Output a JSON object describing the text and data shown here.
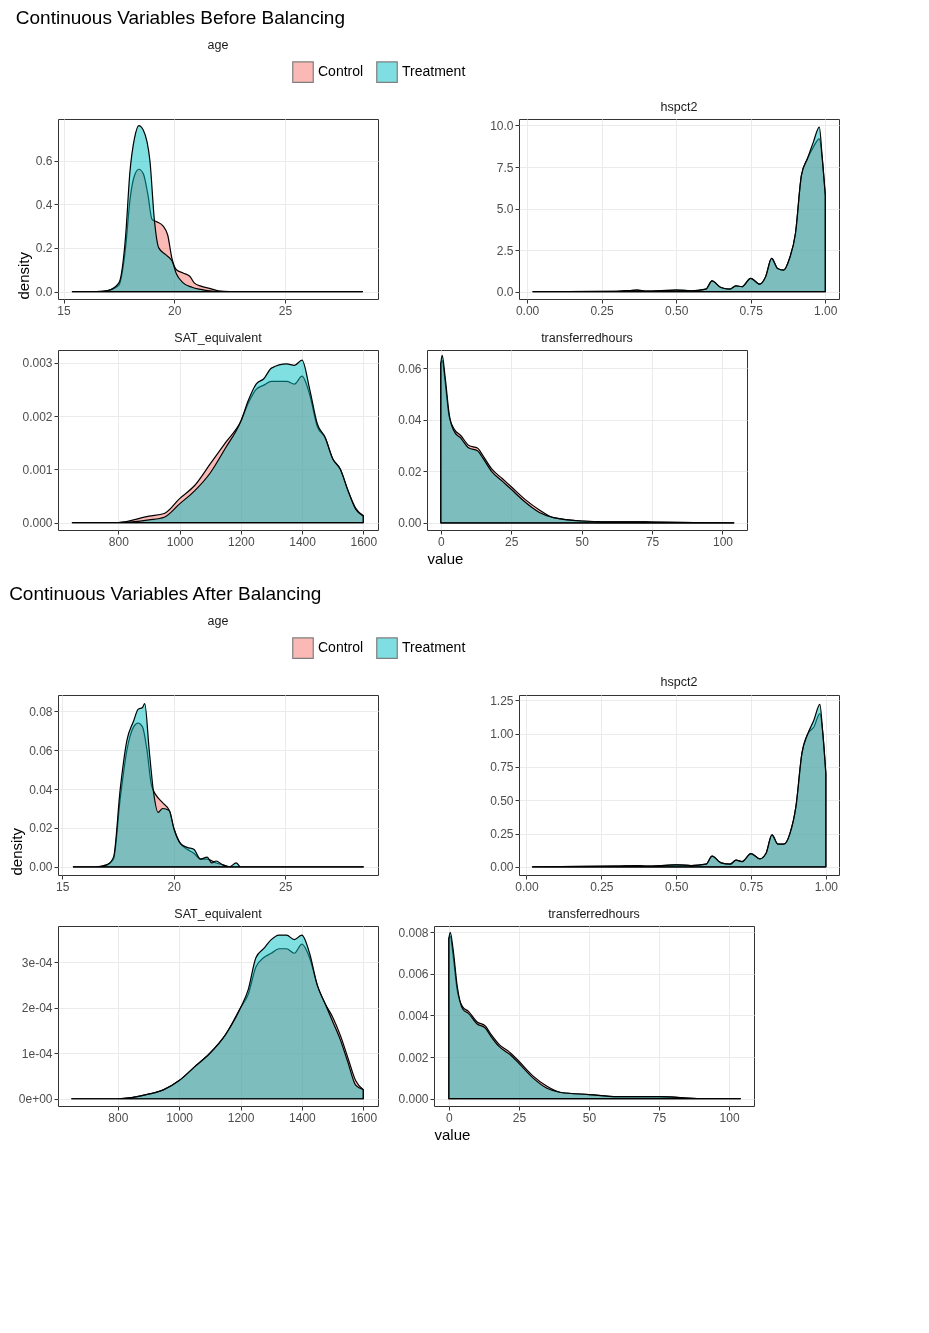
{
  "chart_data": [
    {
      "type": "area",
      "title": "age",
      "annotations": [
        "Continuous Variables Before Balancing"
      ],
      "ylabel": "density",
      "legend": "top",
      "grid": true,
      "xlim": [
        14.75,
        29.2
      ],
      "ylim": [
        -0.034,
        0.79
      ],
      "xticks": [
        15,
        20,
        25
      ],
      "yticks": [
        {
          "value": 0,
          "label": "0.0"
        },
        {
          "value": 0.2,
          "label": "0.2"
        },
        {
          "value": 0.4,
          "label": "0.4"
        },
        {
          "value": 0.6,
          "label": "0.6"
        }
      ],
      "series": [
        {
          "name": "Control",
          "color": "#f8766d",
          "x": [
            15.4,
            16.5,
            17.0,
            17.5,
            17.8,
            18.0,
            18.2,
            18.4,
            18.6,
            18.8,
            19.0,
            19.2,
            19.5,
            19.7,
            19.9,
            20.1,
            20.4,
            20.7,
            20.9,
            21.2,
            21.6,
            22.0,
            22.5,
            28.5
          ],
          "values": [
            0,
            0,
            0.005,
            0.03,
            0.2,
            0.42,
            0.53,
            0.56,
            0.54,
            0.45,
            0.33,
            0.32,
            0.3,
            0.26,
            0.15,
            0.1,
            0.085,
            0.07,
            0.04,
            0.025,
            0.015,
            0.003,
            0,
            0
          ]
        },
        {
          "name": "Treatment",
          "color": "#00bfc4",
          "x": [
            15.4,
            16.5,
            17.0,
            17.5,
            17.8,
            18.0,
            18.2,
            18.4,
            18.6,
            18.9,
            19.1,
            19.3,
            19.6,
            19.9,
            20.1,
            20.4,
            20.8,
            21.2,
            21.6,
            22.0,
            28.5
          ],
          "values": [
            0,
            0,
            0.005,
            0.04,
            0.25,
            0.55,
            0.7,
            0.76,
            0.74,
            0.6,
            0.33,
            0.2,
            0.17,
            0.14,
            0.08,
            0.04,
            0.02,
            0.01,
            0.003,
            0,
            0
          ]
        }
      ]
    },
    {
      "type": "area",
      "title": "hspct2",
      "grid": true,
      "xlim": [
        -0.027,
        1.046
      ],
      "ylim": [
        -0.44,
        10.39
      ],
      "xticks": [
        {
          "value": 0,
          "label": "0.00"
        },
        {
          "value": 0.25,
          "label": "0.25"
        },
        {
          "value": 0.5,
          "label": "0.50"
        },
        {
          "value": 0.75,
          "label": "0.75"
        },
        {
          "value": 1,
          "label": "1.00"
        }
      ],
      "yticks": [
        {
          "value": 0,
          "label": "0.0"
        },
        {
          "value": 2.5,
          "label": "2.5"
        },
        {
          "value": 5,
          "label": "5.0"
        },
        {
          "value": 7.5,
          "label": "7.5"
        },
        {
          "value": 10,
          "label": "10.0"
        }
      ],
      "x": [
        0.02,
        0.3,
        0.37,
        0.4,
        0.5,
        0.55,
        0.6,
        0.62,
        0.65,
        0.68,
        0.7,
        0.72,
        0.75,
        0.78,
        0.8,
        0.82,
        0.84,
        0.86,
        0.88,
        0.9,
        0.92,
        0.94,
        0.96,
        0.98,
        0.99,
        1.0
      ],
      "series": [
        {
          "color": "#f8766d",
          "values": [
            0,
            0.02,
            0.1,
            0.03,
            0.1,
            0.05,
            0.15,
            0.65,
            0.25,
            0.15,
            0.35,
            0.3,
            0.8,
            0.45,
            0.9,
            2.0,
            1.4,
            1.3,
            2.0,
            3.5,
            7.0,
            8.0,
            8.7,
            9.2,
            8.0,
            5.8
          ]
        },
        {
          "color": "#00bfc4",
          "values": [
            0,
            0.02,
            0.1,
            0.03,
            0.1,
            0.05,
            0.15,
            0.65,
            0.25,
            0.15,
            0.35,
            0.3,
            0.8,
            0.45,
            0.9,
            2.0,
            1.4,
            1.3,
            2.0,
            3.5,
            7.0,
            8.0,
            9.0,
            9.9,
            8.0,
            5.8
          ]
        }
      ]
    },
    {
      "type": "area",
      "title": "SAT_equivalent",
      "grid": true,
      "xlim": [
        603,
        1648
      ],
      "ylim": [
        -0.00014,
        0.00324
      ],
      "xticks": [
        800,
        1000,
        1200,
        1400,
        1600
      ],
      "yticks": [
        {
          "value": 0,
          "label": "0.000"
        },
        {
          "value": 0.001,
          "label": "0.001"
        },
        {
          "value": 0.002,
          "label": "0.002"
        },
        {
          "value": 0.003,
          "label": "0.003"
        }
      ],
      "x": [
        650,
        800,
        900,
        950,
        1000,
        1050,
        1100,
        1150,
        1200,
        1225,
        1250,
        1275,
        1300,
        1350,
        1375,
        1400,
        1425,
        1450,
        1475,
        1500,
        1525,
        1550,
        1575,
        1600
      ],
      "series": [
        {
          "color": "#f8766d",
          "values": [
            0,
            0,
            0.00012,
            0.00017,
            0.00045,
            0.0007,
            0.0011,
            0.0015,
            0.0019,
            0.00225,
            0.0025,
            0.00258,
            0.00265,
            0.00265,
            0.0026,
            0.00275,
            0.0024,
            0.0018,
            0.0016,
            0.0012,
            0.001,
            0.0006,
            0.00027,
            0.00013
          ]
        },
        {
          "color": "#00bfc4",
          "values": [
            0,
            0,
            5e-05,
            0.0001,
            0.00035,
            0.0006,
            0.00093,
            0.0014,
            0.0019,
            0.0023,
            0.0026,
            0.0027,
            0.0029,
            0.00298,
            0.00295,
            0.00305,
            0.0025,
            0.00185,
            0.0016,
            0.0012,
            0.001,
            0.0006,
            0.00025,
            0.00012
          ]
        }
      ]
    },
    {
      "type": "area",
      "title": "transferredhours",
      "xlabel": "value",
      "grid": true,
      "xlim": [
        -4.9,
        108.7
      ],
      "ylim": [
        -0.0028,
        0.0671
      ],
      "xticks": [
        0,
        25,
        50,
        75,
        100
      ],
      "yticks": [
        {
          "value": 0,
          "label": "0.00"
        },
        {
          "value": 0.02,
          "label": "0.02"
        },
        {
          "value": 0.04,
          "label": "0.04"
        },
        {
          "value": 0.06,
          "label": "0.06"
        }
      ],
      "x": [
        0,
        0.5,
        1.5,
        3,
        5,
        7,
        10,
        13,
        15,
        18,
        22,
        25,
        30,
        35,
        40,
        50,
        60,
        75,
        90,
        104
      ],
      "series": [
        {
          "color": "#f8766d",
          "values": [
            0.062,
            0.063,
            0.055,
            0.041,
            0.036,
            0.034,
            0.03,
            0.029,
            0.026,
            0.021,
            0.017,
            0.014,
            0.009,
            0.005,
            0.002,
            0.0007,
            0.0004,
            0.0003,
            0.0001,
            0
          ]
        },
        {
          "color": "#00bfc4",
          "values": [
            0.062,
            0.065,
            0.057,
            0.042,
            0.035,
            0.033,
            0.029,
            0.028,
            0.025,
            0.02,
            0.016,
            0.013,
            0.008,
            0.004,
            0.002,
            0.0007,
            0.0004,
            0.0003,
            0.0001,
            0
          ]
        }
      ]
    },
    {
      "type": "area",
      "title": "age",
      "annotations": [
        "Continuous Variables After Balancing"
      ],
      "ylabel": "density",
      "legend": "top",
      "grid": true,
      "xlim": [
        14.81,
        29.16
      ],
      "ylim": [
        -0.0042,
        0.0884
      ],
      "xticks": [
        15,
        20,
        25
      ],
      "yticks": [
        {
          "value": 0,
          "label": "0.00"
        },
        {
          "value": 0.02,
          "label": "0.02"
        },
        {
          "value": 0.04,
          "label": "0.04"
        },
        {
          "value": 0.06,
          "label": "0.06"
        },
        {
          "value": 0.08,
          "label": "0.08"
        }
      ],
      "series": [
        {
          "name": "Control",
          "color": "#f8766d",
          "x": [
            15.5,
            16.5,
            17.0,
            17.3,
            17.6,
            17.9,
            18.2,
            18.4,
            18.6,
            18.8,
            19.0,
            19.2,
            19.5,
            19.8,
            20.0,
            20.3,
            20.6,
            20.9,
            21.2,
            21.5,
            21.9,
            22.2,
            22.5,
            28.5
          ],
          "values": [
            0,
            0,
            0.001,
            0.004,
            0.035,
            0.06,
            0.072,
            0.074,
            0.072,
            0.06,
            0.042,
            0.037,
            0.033,
            0.029,
            0.02,
            0.012,
            0.009,
            0.007,
            0.004,
            0.004,
            0.002,
            0.001,
            0,
            0
          ]
        },
        {
          "name": "Treatment",
          "color": "#00bfc4",
          "x": [
            15.5,
            16.5,
            17.0,
            17.3,
            17.6,
            17.9,
            18.2,
            18.4,
            18.6,
            18.7,
            18.9,
            19.1,
            19.3,
            19.5,
            19.8,
            20.0,
            20.3,
            20.6,
            20.9,
            21.2,
            21.5,
            21.7,
            21.9,
            22.2,
            22.5,
            22.8,
            23.0,
            28.5
          ],
          "values": [
            0,
            0,
            0.001,
            0.005,
            0.04,
            0.065,
            0.075,
            0.081,
            0.082,
            0.084,
            0.06,
            0.038,
            0.028,
            0.03,
            0.029,
            0.02,
            0.012,
            0.01,
            0.009,
            0.004,
            0.005,
            0.002,
            0.003,
            0.001,
            0,
            0.002,
            0,
            0
          ]
        }
      ]
    },
    {
      "type": "area",
      "title": "hspct2",
      "grid": true,
      "xlim": [
        -0.025,
        1.044
      ],
      "ylim": [
        -0.061,
        1.29
      ],
      "xticks": [
        {
          "value": 0,
          "label": "0.00"
        },
        {
          "value": 0.25,
          "label": "0.25"
        },
        {
          "value": 0.5,
          "label": "0.50"
        },
        {
          "value": 0.75,
          "label": "0.75"
        },
        {
          "value": 1,
          "label": "1.00"
        }
      ],
      "yticks": [
        {
          "value": 0,
          "label": "0.00"
        },
        {
          "value": 0.25,
          "label": "0.25"
        },
        {
          "value": 0.5,
          "label": "0.50"
        },
        {
          "value": 0.75,
          "label": "0.75"
        },
        {
          "value": 1,
          "label": "1.00"
        },
        {
          "value": 1.25,
          "label": "1.25"
        }
      ],
      "x": [
        0.02,
        0.3,
        0.37,
        0.4,
        0.5,
        0.55,
        0.6,
        0.62,
        0.65,
        0.68,
        0.7,
        0.72,
        0.75,
        0.78,
        0.8,
        0.82,
        0.84,
        0.86,
        0.88,
        0.9,
        0.92,
        0.94,
        0.96,
        0.98,
        0.99,
        1.0
      ],
      "series": [
        {
          "color": "#f8766d",
          "values": [
            0,
            0.005,
            0.01,
            0.005,
            0.015,
            0.01,
            0.02,
            0.08,
            0.03,
            0.02,
            0.05,
            0.04,
            0.1,
            0.06,
            0.1,
            0.24,
            0.17,
            0.17,
            0.25,
            0.45,
            0.85,
            1.0,
            1.05,
            1.15,
            1.0,
            0.7
          ]
        },
        {
          "color": "#00bfc4",
          "values": [
            0,
            0.005,
            0.01,
            0.005,
            0.015,
            0.01,
            0.02,
            0.08,
            0.03,
            0.02,
            0.05,
            0.04,
            0.1,
            0.06,
            0.1,
            0.24,
            0.17,
            0.17,
            0.25,
            0.45,
            0.85,
            1.0,
            1.1,
            1.22,
            1.0,
            0.7
          ]
        }
      ]
    },
    {
      "type": "area",
      "title": "SAT_equivalent",
      "grid": true,
      "xlim": [
        605,
        1648
      ],
      "ylim": [
        -1.6e-05,
        0.00038
      ],
      "xticks": [
        800,
        1000,
        1200,
        1400,
        1600
      ],
      "yticks": [
        {
          "value": 0,
          "label": "0e+00"
        },
        {
          "value": 0.0001,
          "label": "1e-04"
        },
        {
          "value": 0.0002,
          "label": "2e-04"
        },
        {
          "value": 0.0003,
          "label": "3e-04"
        }
      ],
      "x": [
        650,
        800,
        900,
        950,
        1000,
        1050,
        1100,
        1150,
        1200,
        1225,
        1250,
        1275,
        1300,
        1325,
        1350,
        1375,
        1400,
        1425,
        1450,
        1475,
        1500,
        1525,
        1550,
        1575,
        1600
      ],
      "series": [
        {
          "color": "#f8766d",
          "values": [
            0,
            0,
            1e-05,
            2e-05,
            4e-05,
            7e-05,
            0.0001,
            0.00014,
            0.0002,
            0.00023,
            0.00029,
            0.00031,
            0.00032,
            0.00033,
            0.00033,
            0.00032,
            0.00034,
            0.00031,
            0.00025,
            0.00021,
            0.00018,
            0.00014,
            9e-05,
            4e-05,
            2e-05
          ]
        },
        {
          "color": "#00bfc4",
          "values": [
            0,
            0,
            1e-05,
            2e-05,
            4e-05,
            7e-05,
            0.0001,
            0.00014,
            0.0002,
            0.00024,
            0.00031,
            0.00033,
            0.00035,
            0.00036,
            0.00036,
            0.00035,
            0.00036,
            0.00032,
            0.00025,
            0.00021,
            0.00017,
            0.00013,
            8e-05,
            3e-05,
            2e-05
          ]
        }
      ]
    },
    {
      "type": "area",
      "title": "transferredhours",
      "xlabel": "value",
      "grid": true,
      "xlim": [
        -5.3,
        108.9
      ],
      "ylim": [
        -0.00035,
        0.0083
      ],
      "xticks": [
        0,
        25,
        50,
        75,
        100
      ],
      "yticks": [
        {
          "value": 0,
          "label": "0.000"
        },
        {
          "value": 0.002,
          "label": "0.002"
        },
        {
          "value": 0.004,
          "label": "0.004"
        },
        {
          "value": 0.006,
          "label": "0.006"
        },
        {
          "value": 0.008,
          "label": "0.008"
        }
      ],
      "x": [
        0,
        0.5,
        1.5,
        3,
        5,
        7,
        10,
        13,
        15,
        18,
        22,
        25,
        30,
        35,
        40,
        50,
        60,
        75,
        90,
        104
      ],
      "series": [
        {
          "color": "#f8766d",
          "values": [
            0.0077,
            0.0078,
            0.0069,
            0.0052,
            0.0044,
            0.0042,
            0.0037,
            0.0035,
            0.0031,
            0.0026,
            0.0022,
            0.0018,
            0.0011,
            0.0006,
            0.0003,
            0.0002,
            0.0001,
            0.0001,
            0,
            0
          ]
        },
        {
          "color": "#00bfc4",
          "values": [
            0.0077,
            0.008,
            0.0072,
            0.0054,
            0.0043,
            0.0041,
            0.0036,
            0.0034,
            0.003,
            0.0025,
            0.0021,
            0.0017,
            0.001,
            0.0005,
            0.0003,
            0.0002,
            0.0001,
            0.0001,
            0,
            0
          ]
        }
      ]
    }
  ]
}
